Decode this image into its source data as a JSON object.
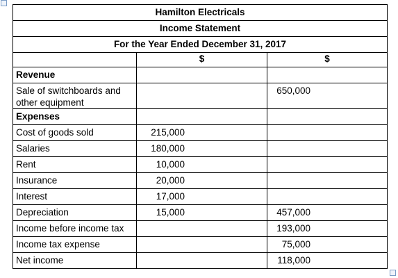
{
  "header": {
    "company": "Hamilton Electricals",
    "statement": "Income Statement",
    "period": "For the Year Ended December 31, 2017"
  },
  "table": {
    "column_headers": [
      "$",
      "$"
    ],
    "rows": [
      {
        "heading": "Revenue"
      },
      {
        "label": "Sale of switchboards and other equipment",
        "total": "650,000"
      },
      {
        "heading": "Expenses"
      },
      {
        "label": "Cost of goods sold",
        "amount": "215,000"
      },
      {
        "label": "Salaries",
        "amount": "180,000"
      },
      {
        "label": "Rent",
        "amount": "10,000"
      },
      {
        "label": "Insurance",
        "amount": "20,000"
      },
      {
        "label": "Interest",
        "amount": "17,000"
      },
      {
        "label": "Depreciation",
        "amount": "15,000",
        "total": "457,000"
      },
      {
        "label": "Income before income tax",
        "total": "193,000"
      },
      {
        "label": "Income tax expense",
        "total": "75,000"
      },
      {
        "label": "Net income",
        "total": "118,000"
      }
    ]
  }
}
